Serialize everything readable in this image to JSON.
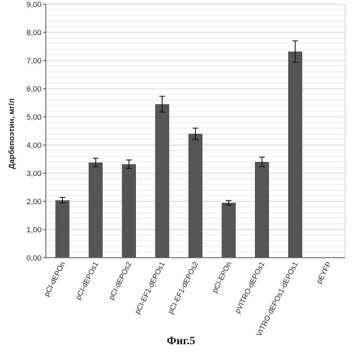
{
  "figure_caption": "Фиг.5",
  "chart_data": {
    "type": "bar",
    "title": "",
    "xlabel": "",
    "ylabel": "Дарбепоэтин, мг/л",
    "ylim": [
      0,
      9
    ],
    "ytick_step": 1,
    "ytick_labels": [
      "0,00",
      "1,00",
      "2,00",
      "3,00",
      "4,00",
      "5,00",
      "6,00",
      "7,00",
      "8,00",
      "9,00"
    ],
    "grid": true,
    "minor_grid_step": 0.2,
    "categories": [
      "pCI-dEPOn",
      "pCI-dEPOs1",
      "pCI-dEPOs2",
      "pCI-EF1-dEPOs1",
      "pCI-EF1-dEPOs2",
      "pCI-EPOn",
      "pVITRO-dEPOs1",
      "pVITRO-dEPOs1-dEPOs1",
      "pEYFP"
    ],
    "values": [
      2.04,
      3.38,
      3.32,
      5.45,
      4.4,
      1.95,
      3.4,
      7.32,
      0
    ],
    "errors": [
      0.1,
      0.15,
      0.15,
      0.28,
      0.2,
      0.08,
      0.17,
      0.38,
      0
    ],
    "bar_color": "#555555",
    "grid_color": "#cfcfcf"
  }
}
